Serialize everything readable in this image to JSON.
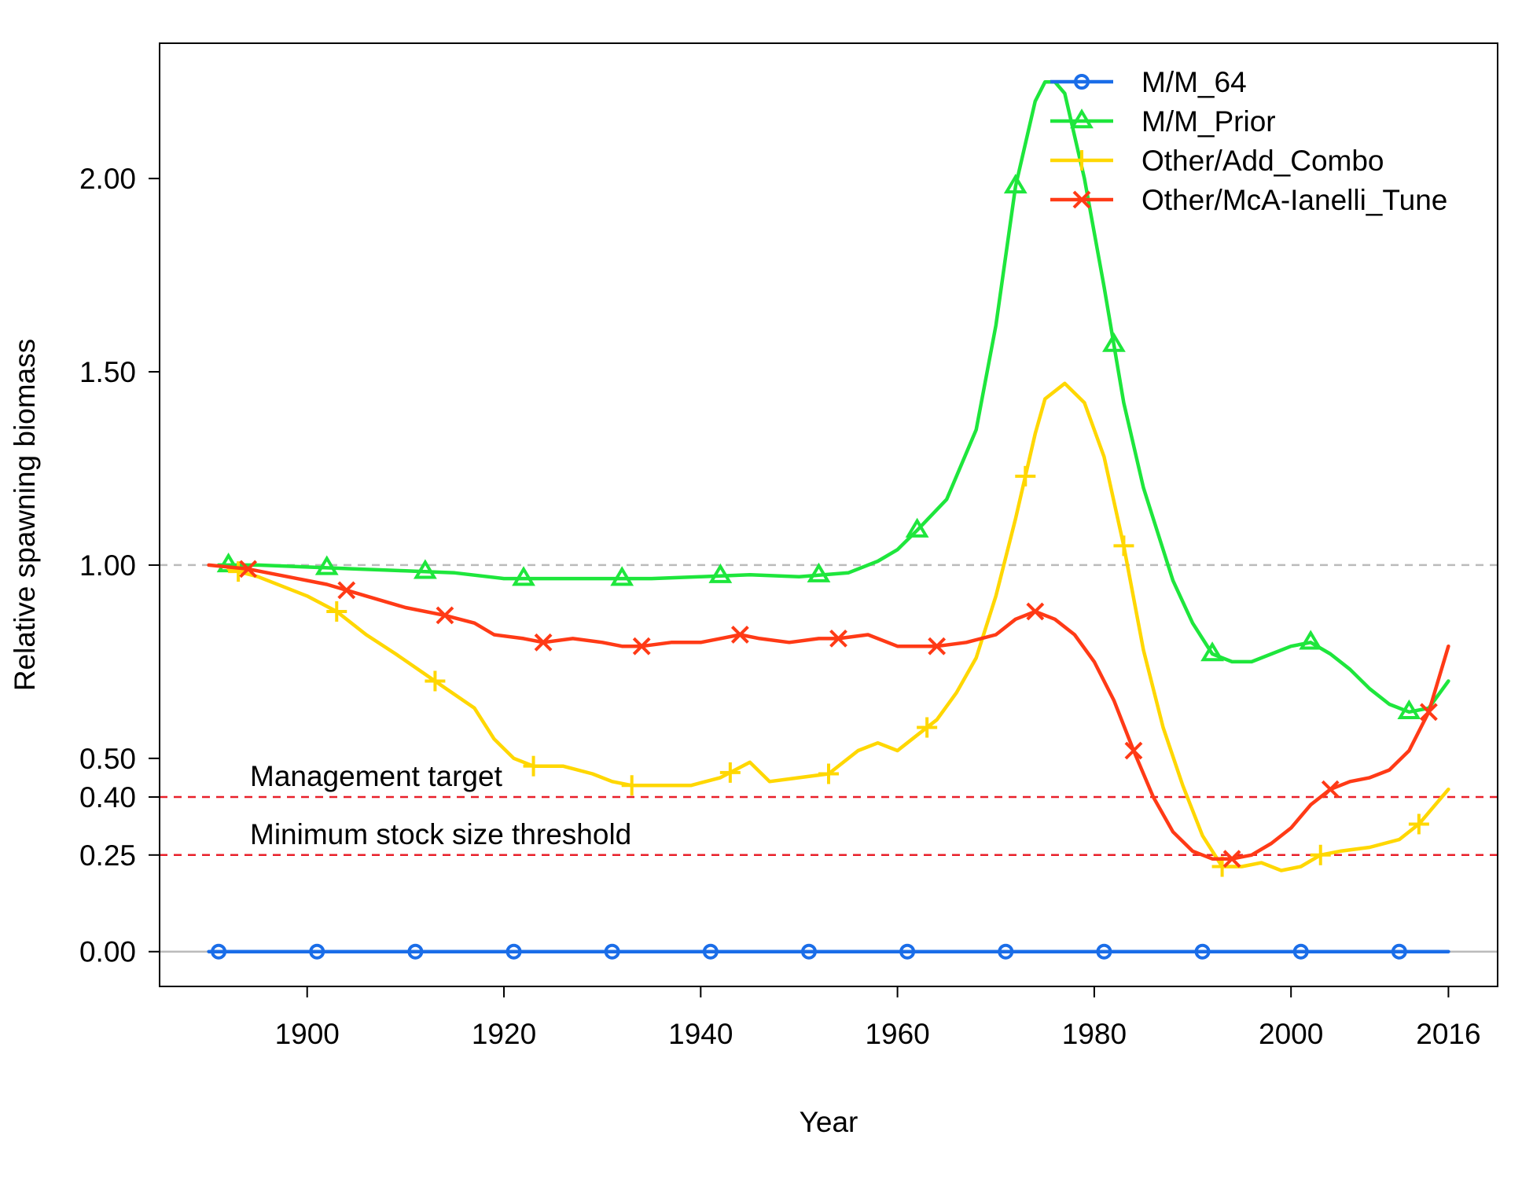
{
  "chart_data": {
    "type": "line",
    "xlabel": "Year",
    "ylabel": "Relative spawning biomass",
    "xlim": [
      1885,
      2021
    ],
    "ylim": [
      -0.09,
      2.35
    ],
    "x_ticks": [
      1900,
      1920,
      1940,
      1960,
      1980,
      2000,
      2016
    ],
    "y_ticks": [
      0.0,
      0.25,
      0.4,
      0.5,
      1.0,
      1.5,
      2.0
    ],
    "y_tick_labels": [
      "0.00",
      "0.25",
      "0.40",
      "0.50",
      "1.00",
      "1.50",
      "2.00"
    ],
    "legend_position": "top-right",
    "grid": false,
    "reference_lines": [
      {
        "y": 1.0,
        "color": "#bbbbbb",
        "style": "dashed",
        "label": ""
      },
      {
        "y": 0.4,
        "color": "#e8202a",
        "style": "dashed",
        "label": "Management target"
      },
      {
        "y": 0.25,
        "color": "#e8202a",
        "style": "dashed",
        "label": "Minimum stock size threshold"
      },
      {
        "y": 0.0,
        "color": "#bbbbbb",
        "style": "solid",
        "label": ""
      }
    ],
    "series": [
      {
        "name": "M/M_64",
        "color": "#1a6de8",
        "marker": "circle",
        "x": [
          1890,
          2016
        ],
        "y": [
          0.0,
          0.0
        ],
        "marker_x": [
          1891,
          1901,
          1911,
          1921,
          1931,
          1941,
          1951,
          1961,
          1971,
          1981,
          1991,
          2001,
          2011
        ]
      },
      {
        "name": "M/M_Prior",
        "color": "#1ee63c",
        "marker": "triangle",
        "x": [
          1891,
          1895,
          1900,
          1905,
          1910,
          1915,
          1920,
          1925,
          1930,
          1935,
          1940,
          1945,
          1950,
          1955,
          1958,
          1960,
          1962,
          1965,
          1968,
          1970,
          1972,
          1974,
          1975,
          1976,
          1977,
          1979,
          1981,
          1983,
          1985,
          1988,
          1990,
          1992,
          1994,
          1996,
          1998,
          2000,
          2002,
          2004,
          2006,
          2008,
          2010,
          2012,
          2014,
          2016
        ],
        "y": [
          1.0,
          1.0,
          0.995,
          0.99,
          0.985,
          0.98,
          0.965,
          0.965,
          0.965,
          0.965,
          0.97,
          0.975,
          0.97,
          0.98,
          1.01,
          1.04,
          1.09,
          1.17,
          1.35,
          1.62,
          1.98,
          2.2,
          2.25,
          2.25,
          2.22,
          2.0,
          1.72,
          1.42,
          1.2,
          0.96,
          0.85,
          0.77,
          0.75,
          0.75,
          0.77,
          0.79,
          0.8,
          0.77,
          0.73,
          0.68,
          0.64,
          0.62,
          0.63,
          0.7
        ],
        "marker_x": [
          1892,
          1902,
          1912,
          1922,
          1932,
          1942,
          1952,
          1962,
          1972,
          1982,
          1992,
          2002,
          2012
        ]
      },
      {
        "name": "Other/Add_Combo",
        "color": "#ffd700",
        "marker": "plus",
        "x": [
          1892,
          1895,
          1900,
          1903,
          1906,
          1909,
          1913,
          1917,
          1919,
          1921,
          1923,
          1926,
          1929,
          1931,
          1933,
          1936,
          1939,
          1942,
          1945,
          1947,
          1950,
          1953,
          1956,
          1958,
          1960,
          1962,
          1964,
          1966,
          1968,
          1970,
          1972,
          1974,
          1975,
          1977,
          1979,
          1981,
          1983,
          1985,
          1987,
          1989,
          1991,
          1993,
          1995,
          1997,
          1999,
          2001,
          2003,
          2005,
          2008,
          2011,
          2013,
          2016
        ],
        "y": [
          0.99,
          0.97,
          0.92,
          0.88,
          0.82,
          0.77,
          0.7,
          0.63,
          0.55,
          0.5,
          0.48,
          0.48,
          0.46,
          0.44,
          0.43,
          0.43,
          0.43,
          0.45,
          0.49,
          0.44,
          0.45,
          0.46,
          0.52,
          0.54,
          0.52,
          0.56,
          0.6,
          0.67,
          0.76,
          0.92,
          1.12,
          1.34,
          1.43,
          1.47,
          1.42,
          1.28,
          1.05,
          0.78,
          0.58,
          0.43,
          0.3,
          0.22,
          0.22,
          0.23,
          0.21,
          0.22,
          0.25,
          0.26,
          0.27,
          0.29,
          0.33,
          0.42
        ],
        "marker_x": [
          1893,
          1903,
          1913,
          1923,
          1933,
          1943,
          1953,
          1963,
          1973,
          1983,
          1993,
          2003,
          2013
        ]
      },
      {
        "name": "Other/McA-Ianelli_Tune",
        "color": "#ff3a16",
        "marker": "x",
        "x": [
          1890,
          1894,
          1898,
          1902,
          1906,
          1910,
          1914,
          1917,
          1919,
          1922,
          1924,
          1927,
          1930,
          1932,
          1934,
          1937,
          1940,
          1942,
          1944,
          1946,
          1949,
          1952,
          1954,
          1957,
          1960,
          1962,
          1964,
          1967,
          1970,
          1972,
          1974,
          1976,
          1978,
          1980,
          1982,
          1984,
          1986,
          1988,
          1990,
          1992,
          1994,
          1996,
          1998,
          2000,
          2002,
          2004,
          2006,
          2008,
          2010,
          2012,
          2014,
          2016
        ],
        "y": [
          1.0,
          0.99,
          0.97,
          0.95,
          0.92,
          0.89,
          0.87,
          0.85,
          0.82,
          0.81,
          0.8,
          0.81,
          0.8,
          0.79,
          0.79,
          0.8,
          0.8,
          0.81,
          0.82,
          0.81,
          0.8,
          0.81,
          0.81,
          0.82,
          0.79,
          0.79,
          0.79,
          0.8,
          0.82,
          0.86,
          0.88,
          0.86,
          0.82,
          0.75,
          0.65,
          0.52,
          0.4,
          0.31,
          0.26,
          0.24,
          0.24,
          0.25,
          0.28,
          0.32,
          0.38,
          0.42,
          0.44,
          0.45,
          0.47,
          0.52,
          0.62,
          0.79
        ],
        "marker_x": [
          1894,
          1904,
          1914,
          1924,
          1934,
          1944,
          1954,
          1964,
          1974,
          1984,
          1994,
          2004,
          2014
        ]
      }
    ]
  }
}
